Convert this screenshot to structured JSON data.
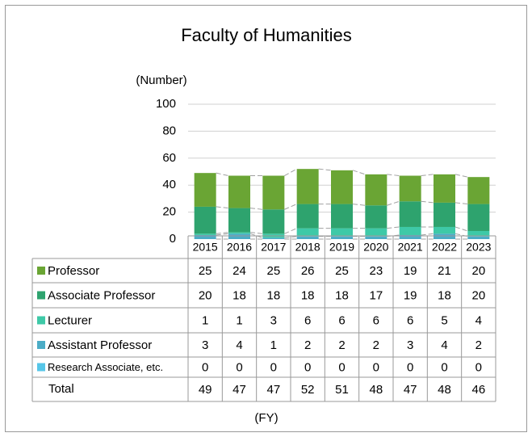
{
  "chart_data": {
    "type": "bar",
    "stacked": true,
    "title": "Faculty of Humanities",
    "y_label": "(Number)",
    "x_label": "(FY)",
    "categories": [
      "2015",
      "2016",
      "2017",
      "2018",
      "2019",
      "2020",
      "2021",
      "2022",
      "2023"
    ],
    "series": [
      {
        "name": "Professor",
        "color": "#6aa534",
        "values": [
          25,
          24,
          25,
          26,
          25,
          23,
          19,
          21,
          20
        ]
      },
      {
        "name": "Associate Professor",
        "color": "#2ea36e",
        "values": [
          20,
          18,
          18,
          18,
          18,
          17,
          19,
          18,
          20
        ]
      },
      {
        "name": "Lecturer",
        "color": "#3ec9a7",
        "values": [
          1,
          1,
          3,
          6,
          6,
          6,
          6,
          5,
          4
        ]
      },
      {
        "name": "Assistant Professor",
        "color": "#4bacc6",
        "values": [
          3,
          4,
          1,
          2,
          2,
          2,
          3,
          4,
          2
        ]
      },
      {
        "name": "Research Associate, etc.",
        "color": "#56c6e8",
        "values": [
          0,
          0,
          0,
          0,
          0,
          0,
          0,
          0,
          0
        ]
      }
    ],
    "total_label": "Total",
    "totals": [
      49,
      47,
      47,
      52,
      51,
      48,
      47,
      48,
      46
    ],
    "ylim": [
      0,
      100
    ],
    "yticks": [
      0,
      20,
      40,
      60,
      80,
      100
    ],
    "grid": true
  }
}
